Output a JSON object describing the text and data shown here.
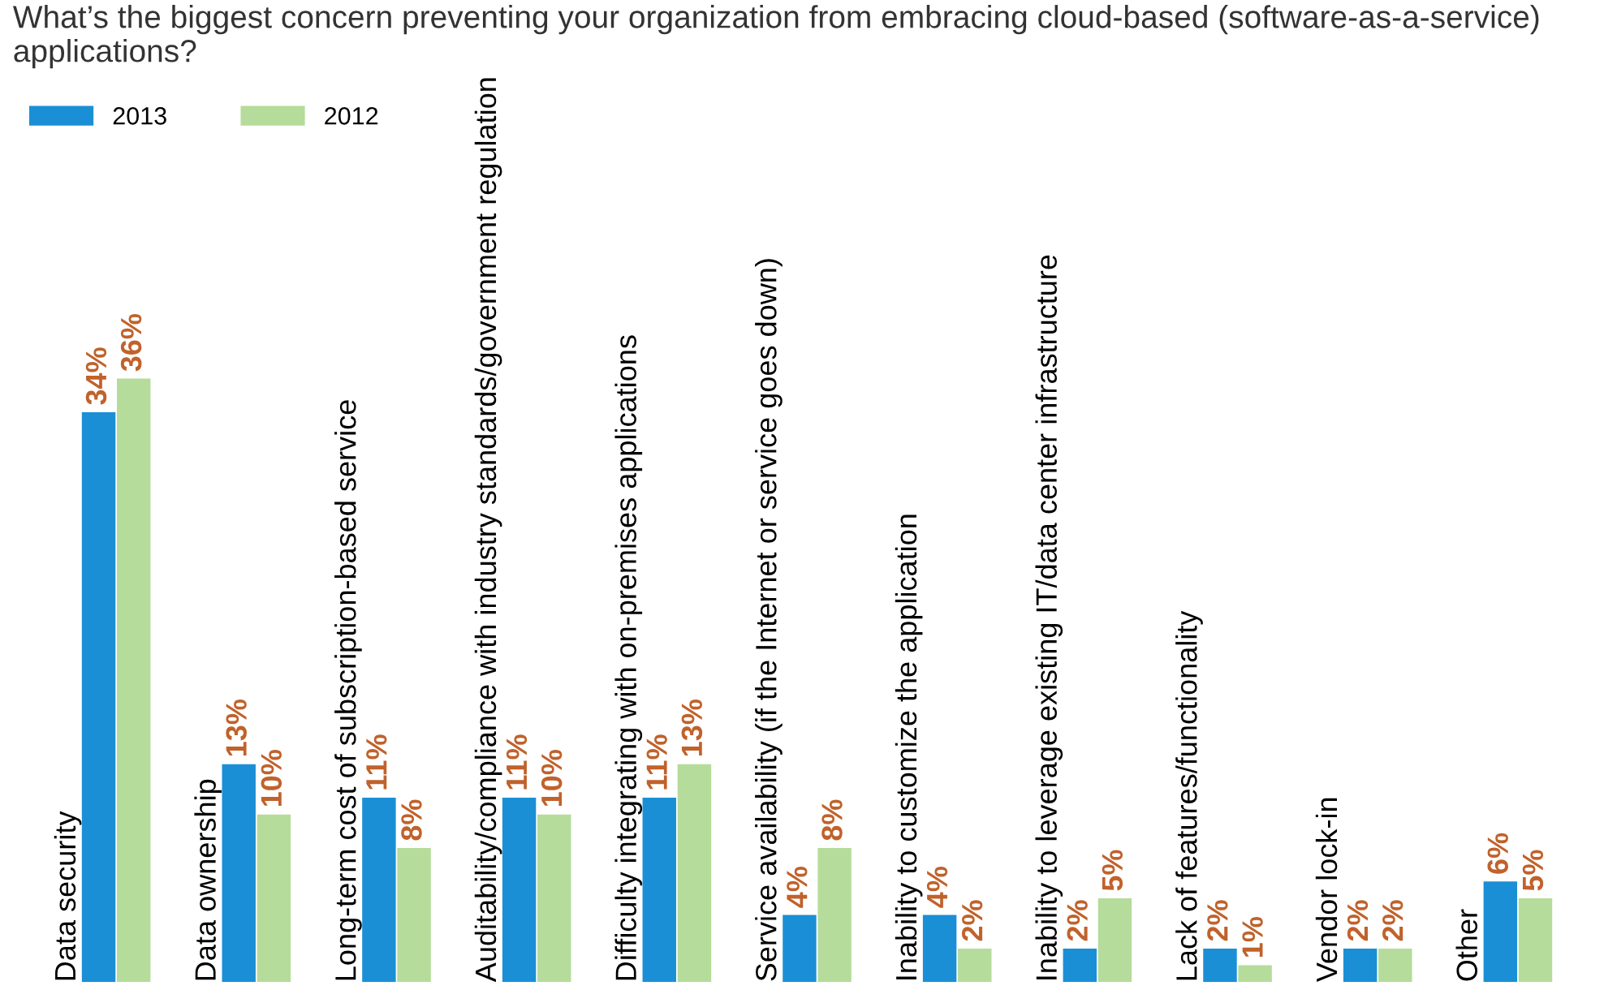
{
  "chart_data": {
    "type": "bar",
    "title": "What’s the biggest concern preventing your organization from embracing cloud-based (software-as-a-service) applications?",
    "categories": [
      "Data security",
      "Data ownership",
      "Long-term cost of subscription-based service",
      "Auditability/compliance with industry standards/government regulation",
      "Difficulty integrating with on-premises applications",
      "Service availability (if the Internet or service goes down)",
      "Inability to customize the application",
      "Inability to leverage existing IT/data center infrastructure",
      "Lack of features/functionality",
      "Vendor lock-in",
      "Other"
    ],
    "series": [
      {
        "name": "2013",
        "color": "#1a8fd6",
        "values": [
          34,
          13,
          11,
          11,
          11,
          4,
          4,
          2,
          2,
          2,
          6
        ],
        "value_labels": [
          "34%",
          "13%",
          "11%",
          "11%",
          "11%",
          "4%",
          "4%",
          "2%",
          "2%",
          "2%",
          "6%"
        ]
      },
      {
        "name": "2012",
        "color": "#b5dc9a",
        "values": [
          36,
          10,
          8,
          10,
          13,
          8,
          2,
          5,
          1,
          2,
          5
        ],
        "value_labels": [
          "36%",
          "10%",
          "8%",
          "10%",
          "13%",
          "8%",
          "2%",
          "5%",
          "1%",
          "2%",
          "5%"
        ]
      }
    ],
    "legend": "top left",
    "tick_labels": "x"
  }
}
